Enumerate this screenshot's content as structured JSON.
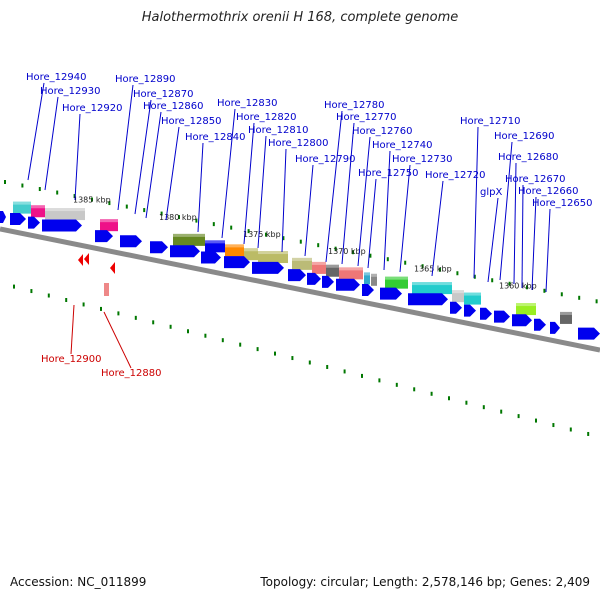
{
  "title": "Halothermothrix orenii H 168, complete genome",
  "footer": {
    "accession": "Accession: NC_011899",
    "summary": "Topology: circular; Length: 2,578,146 bp; Genes: 2,409"
  },
  "colors": {
    "label_forward": "#0000cc",
    "label_reverse": "#cc0000",
    "gene_arrow": "#0000ee",
    "gene_arrow_reverse": "#ee0000",
    "backbone": "#777777",
    "tick": "#007700"
  },
  "ruler": [
    "1385 kbp",
    "1380 kbp",
    "1375 kbp",
    "1370 kbp",
    "1365 kbp",
    "1360 kbp"
  ],
  "labels_top": [
    "Hore_12940",
    "Hore_12930",
    "Hore_12920",
    "Hore_12890",
    "Hore_12870",
    "Hore_12860",
    "Hore_12850",
    "Hore_12840",
    "Hore_12830",
    "Hore_12820",
    "Hore_12810",
    "Hore_12800",
    "Hore_12790",
    "Hore_12780",
    "Hore_12770",
    "Hore_12760",
    "Hore_12750",
    "Hore_12740",
    "Hore_12730",
    "Hore_12720",
    "Hore_12710",
    "Hore_12690",
    "glpX",
    "Hore_12680",
    "Hore_12670",
    "Hore_12660",
    "Hore_12650"
  ],
  "labels_bottom": [
    "Hore_12900",
    "Hore_12880"
  ]
}
